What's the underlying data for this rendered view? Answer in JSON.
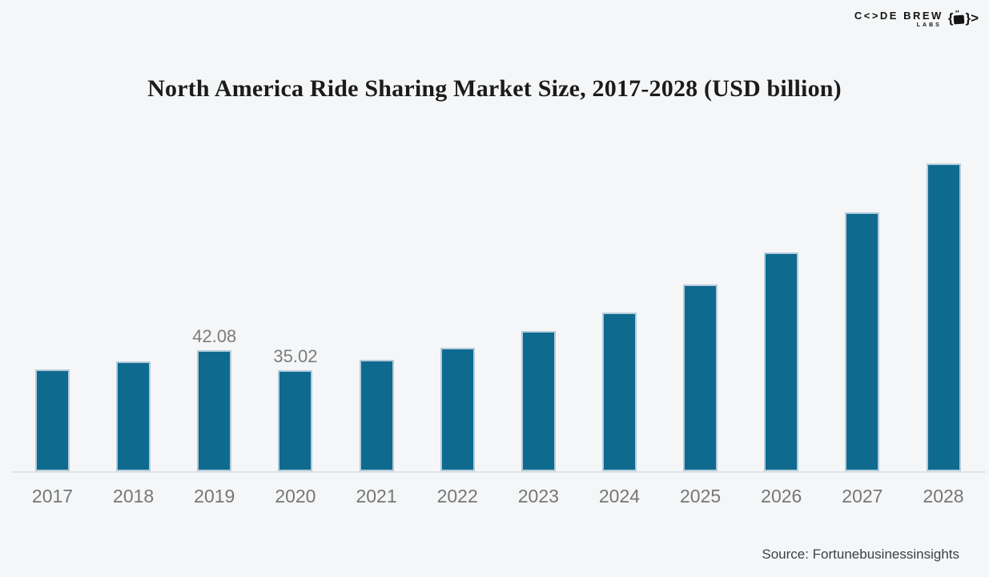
{
  "page": {
    "background": "#f5f6f7"
  },
  "brand": {
    "name_display": "C<>DE BREW",
    "sub": "LABS",
    "icon": "code-brew-mug-icon",
    "steam_marks": "″",
    "arrow": ">"
  },
  "chart_data": {
    "type": "bar",
    "title": "North America Ride Sharing Market Size, 2017-2028 (USD billion)",
    "categories": [
      "2017",
      "2018",
      "2019",
      "2020",
      "2021",
      "2022",
      "2023",
      "2024",
      "2025",
      "2026",
      "2027",
      "2028"
    ],
    "values": [
      35.3,
      38.1,
      42.08,
      35.02,
      38.5,
      42.8,
      48.5,
      55.1,
      64.6,
      75.9,
      89.7,
      106.8
    ],
    "data_labels": [
      "",
      "",
      "42.08",
      "35.02",
      "",
      "",
      "",
      "",
      "",
      "",
      "",
      ""
    ],
    "xlabel": "",
    "ylabel": "",
    "ylim": [
      0,
      115
    ],
    "grid": false,
    "legend": null,
    "y_axis_visible": false,
    "bar_color": "#0e6a8e",
    "bar_edge_color": "#b3cbdc",
    "axis_line_color": "#e2e3e4",
    "label_color": "#7c7c7c",
    "tick_color": "#767676"
  },
  "source": {
    "text": "Source: Fortunebusinessinsights"
  }
}
